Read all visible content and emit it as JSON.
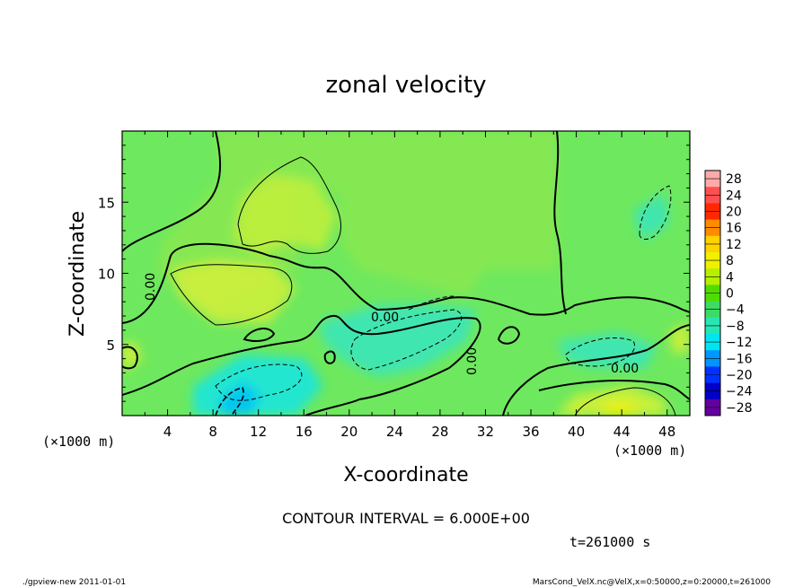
{
  "chart_data": {
    "type": "heatmap",
    "title": "zonal velocity",
    "xlabel": "X-coordinate",
    "ylabel": "Z-coordinate",
    "x_unit_note": "(×1000 m)",
    "z_unit_note": "(×1000 m)",
    "xlim": [
      0,
      50
    ],
    "ylim": [
      0,
      20
    ],
    "x_ticks": [
      4,
      8,
      12,
      16,
      20,
      24,
      28,
      32,
      36,
      40,
      44,
      48
    ],
    "y_ticks": [
      5,
      10,
      15
    ],
    "colorbar": {
      "levels": [
        28,
        24,
        20,
        16,
        12,
        8,
        4,
        0,
        -4,
        -8,
        -12,
        -16,
        -20,
        -24,
        -28
      ],
      "colors": [
        "#ffaaaa",
        "#ff5050",
        "#ff2800",
        "#ff8c00",
        "#ffd200",
        "#f0f000",
        "#b4f000",
        "#50dc00",
        "#3cdc64",
        "#28e6b4",
        "#00e6f0",
        "#0096ff",
        "#0032ff",
        "#0000c8",
        "#6400a0"
      ]
    },
    "contour_labels": [
      "0.00",
      "0.00",
      "0.00",
      "0.00"
    ],
    "contour_interval_text": "CONTOUR INTERVAL = 6.000E+00",
    "time_text": "t=261000 s"
  },
  "footer": {
    "left": "./gpview-new  2011-01-01",
    "right": "MarsCond_VelX.nc@VelX,x=0:50000,z=0:20000,t=261000"
  }
}
